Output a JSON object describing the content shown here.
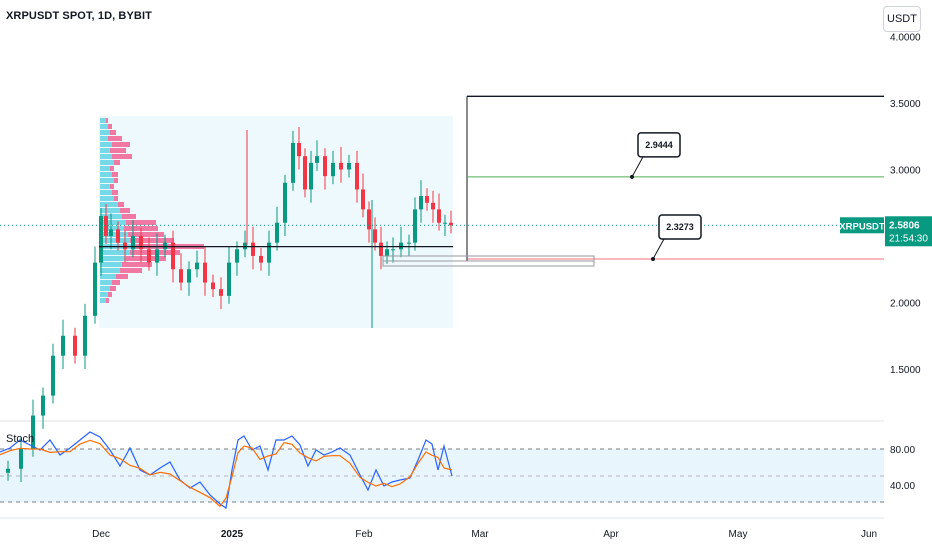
{
  "header": {
    "symbol": "XRPUSDT SPOT, 1D, BYBIT",
    "currency": "USDT"
  },
  "price_axis": {
    "ticks": [
      "4.0000",
      "3.5000",
      "3.0000",
      "2.0000",
      "1.5000"
    ],
    "tick_values": [
      4.0,
      3.5,
      3.0,
      2.0,
      1.5
    ]
  },
  "last_price": {
    "symbol": "XRPUSDT",
    "value": "2.5806",
    "countdown": "21:54:30",
    "price": 2.5806
  },
  "annotations": {
    "upper_label": "2.9444",
    "upper_value": 2.9444,
    "lower_label": "2.3273",
    "lower_value": 2.3273,
    "range_top": 3.55,
    "poc_level": 2.42
  },
  "time_axis": {
    "labels": [
      "Dec",
      "2025",
      "Feb",
      "Mar",
      "Apr",
      "May",
      "Jun"
    ]
  },
  "indicator": {
    "name": "Stoch",
    "levels": [
      "80.00",
      "40.00"
    ],
    "level_values": [
      80,
      40
    ]
  },
  "colors": {
    "up": "#089981",
    "down": "#f23645",
    "vp_up": "#5fd3e4",
    "vp_down": "#f06292",
    "k_line": "#2962ff",
    "d_line": "#ff6d00",
    "accent": "#089981"
  }
}
